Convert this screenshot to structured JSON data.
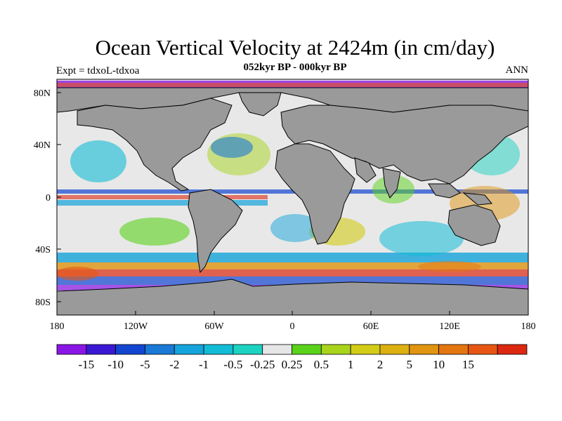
{
  "title": "Ocean Vertical Velocity at 2424m (in cm/day)",
  "subtitle": "052kyr BP - 000kyr BP",
  "left_label": "Expt = tdxoL-tdxoa",
  "right_label": "ANN",
  "colors": {
    "land": "#9a9a9a",
    "coast": "#000000"
  },
  "map_axes": {
    "lon_ticks": [
      "180",
      "120W",
      "60W",
      "0",
      "60E",
      "120E",
      "180"
    ],
    "lat_ticks": [
      "80N",
      "40N",
      "0",
      "40S",
      "80S"
    ]
  },
  "colorbar": {
    "colors": [
      "#8a16e6",
      "#3a18d4",
      "#1346d0",
      "#1a78d6",
      "#14a3da",
      "#12bcd6",
      "#1cd2c0",
      "#e6e6e6",
      "#5ad21a",
      "#a8d41c",
      "#d2cc16",
      "#ddb012",
      "#e09410",
      "#e47610",
      "#e65612",
      "#dc2810"
    ],
    "labels": [
      "-15",
      "-10",
      "-5",
      "-2",
      "-1",
      "-0.5",
      "-0.25",
      "0.25",
      "0.5",
      "1",
      "2",
      "5",
      "10",
      "15"
    ]
  }
}
